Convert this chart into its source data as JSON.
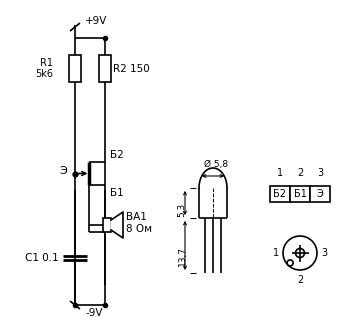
{
  "bg_color": "#ffffff",
  "line_color": "#000000",
  "lw": 1.2,
  "lw_thick": 2.0,
  "fig_width": 3.5,
  "fig_height": 3.36,
  "labels": {
    "plus9v": "+9V",
    "minus9v": "-9V",
    "R1": "R1\n5k6",
    "R2": "R2 150",
    "B2_top": "Б2",
    "B1": "Б1",
    "E": "Э",
    "C1": "C1 0.1",
    "BA1": "ВА1\n8 Ом",
    "diam": "Ø 5,8",
    "dim53": "5,3",
    "dim137": "13,7",
    "pin1": "1",
    "pin2": "2",
    "pin3": "3",
    "B2_box": "Б2",
    "B1_box": "Б1",
    "E_box": "Э"
  }
}
